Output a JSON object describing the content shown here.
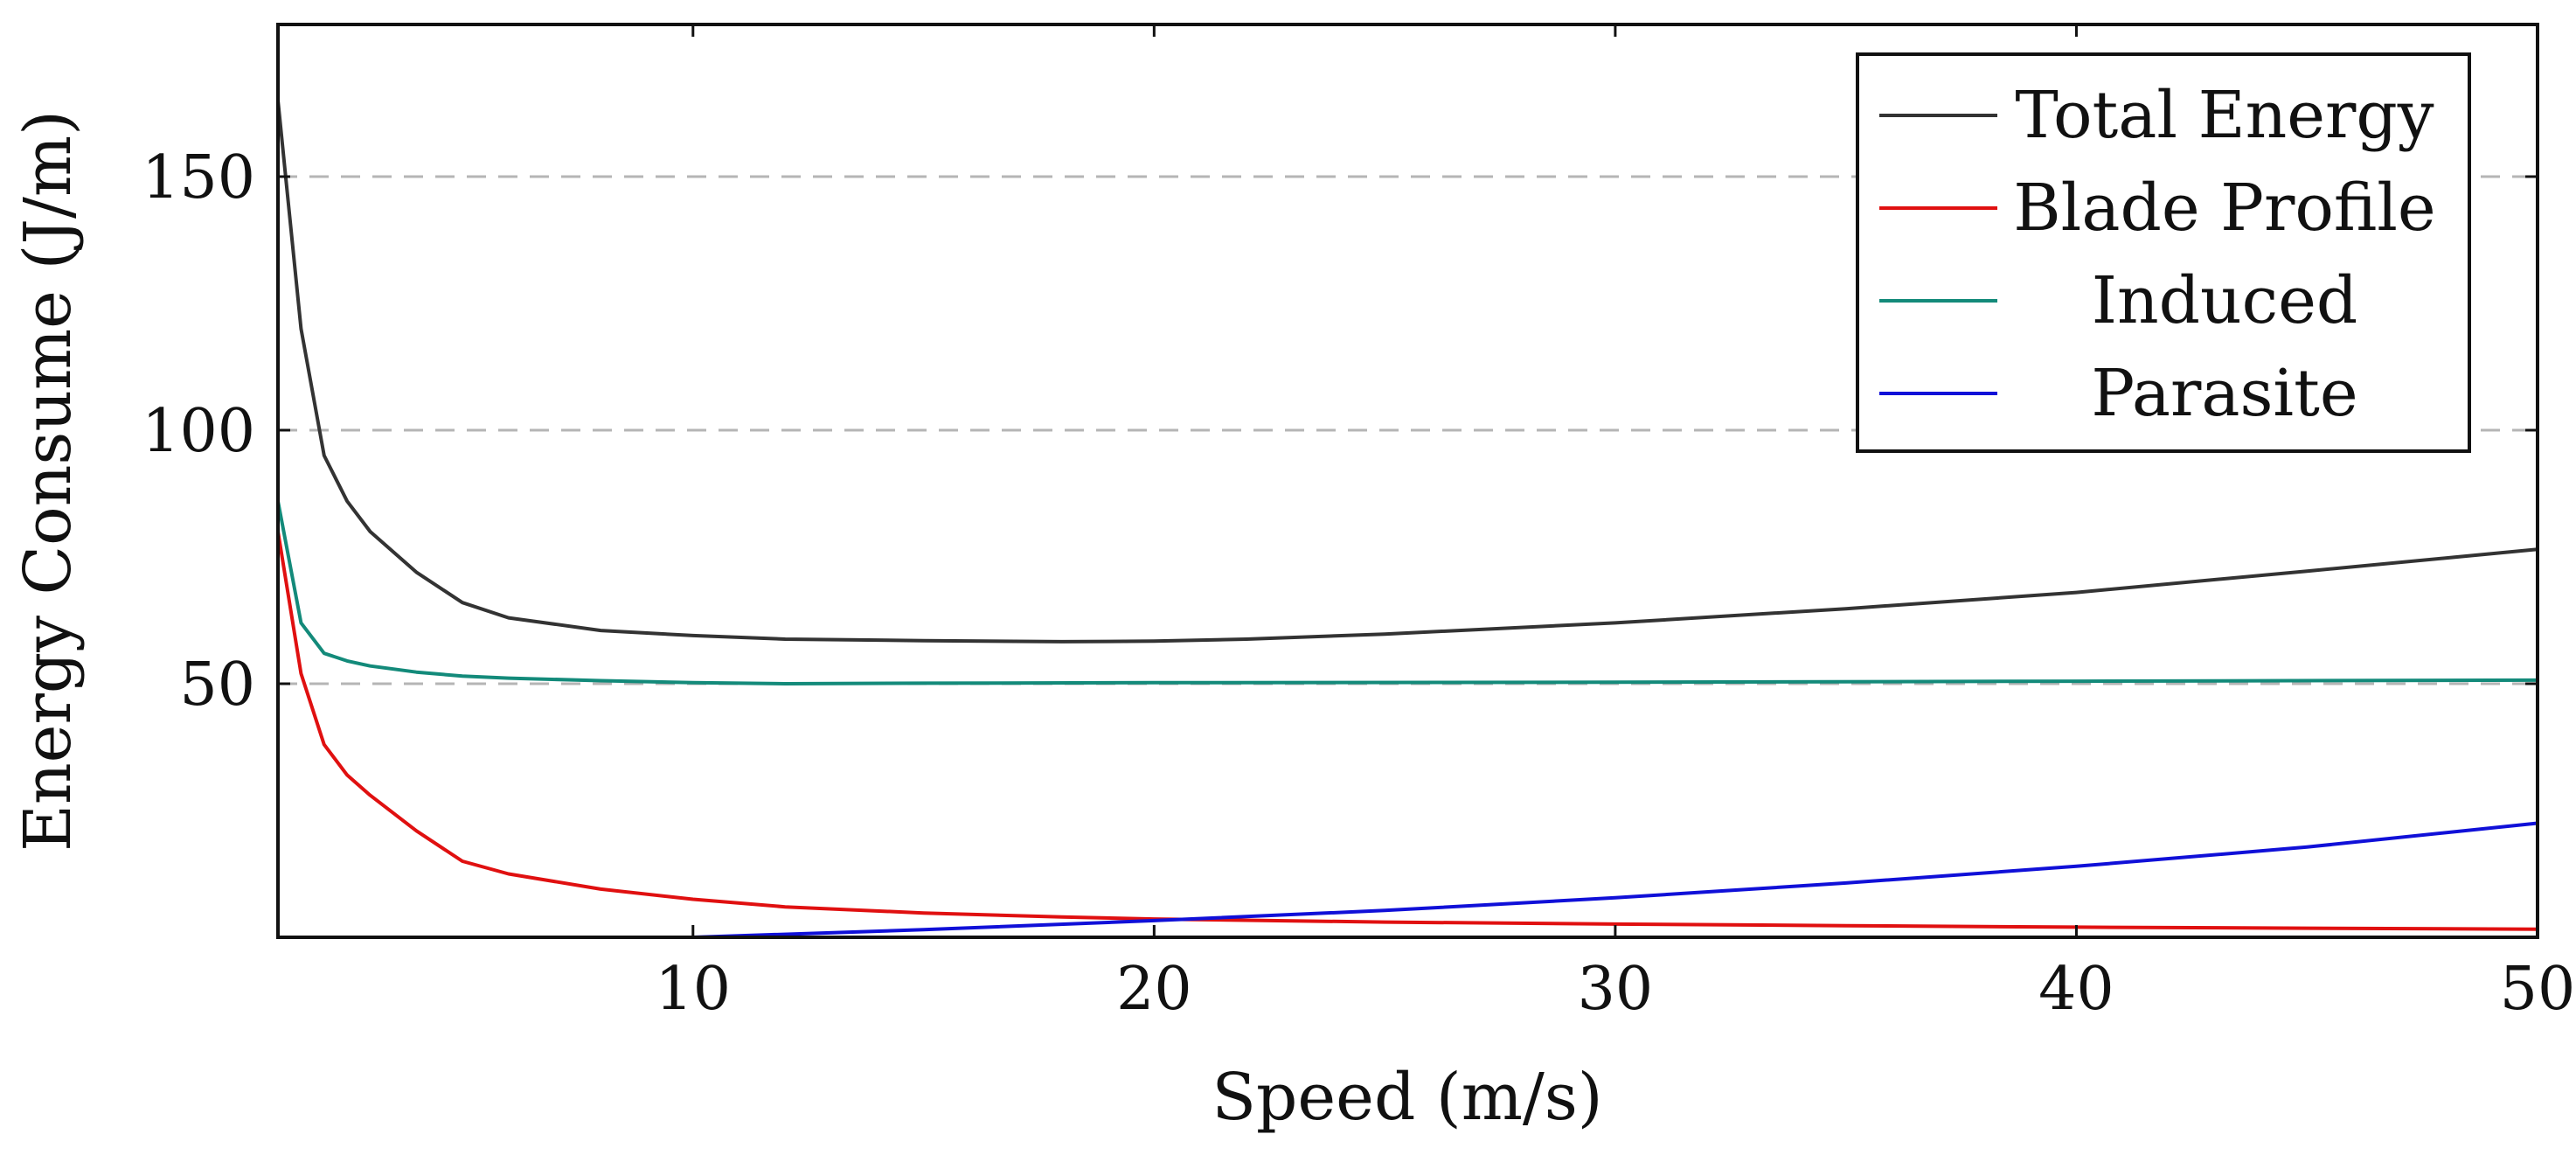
{
  "chart_data": {
    "type": "line",
    "title": "",
    "xlabel": "Speed (m/s)",
    "ylabel": "Energy Consume (J/m)",
    "xlim": [
      1,
      50
    ],
    "ylim": [
      0,
      180
    ],
    "xticks": [
      10,
      20,
      30,
      40,
      50
    ],
    "yticks": [
      50,
      100,
      150
    ],
    "grid": "horizontal-dashed",
    "legend_position": "top-right",
    "series": [
      {
        "name": "Total Energy",
        "color": "#333333",
        "x": [
          1,
          1.5,
          2,
          2.5,
          3,
          4,
          5,
          6,
          8,
          10,
          12,
          15,
          18,
          20,
          22,
          25,
          30,
          35,
          40,
          45,
          50
        ],
        "y": [
          165,
          120,
          95,
          86,
          80,
          72,
          66,
          63,
          60.5,
          59.5,
          58.8,
          58.5,
          58.3,
          58.4,
          58.8,
          59.8,
          62,
          64.8,
          68,
          72.2,
          76.5
        ]
      },
      {
        "name": "Blade Profile",
        "color": "#e01010",
        "x": [
          1,
          1.5,
          2,
          2.5,
          3,
          4,
          5,
          6,
          8,
          10,
          12,
          15,
          18,
          20,
          25,
          30,
          35,
          40,
          45,
          50
        ],
        "y": [
          80,
          52,
          38,
          32,
          28,
          21,
          15,
          12.5,
          9.5,
          7.5,
          6,
          4.8,
          4,
          3.6,
          3,
          2.6,
          2.3,
          2.0,
          1.8,
          1.6
        ]
      },
      {
        "name": "Induced",
        "color": "#138a7a",
        "x": [
          1,
          1.5,
          2,
          2.5,
          3,
          4,
          5,
          6,
          8,
          10,
          12,
          15,
          20,
          30,
          40,
          50
        ],
        "y": [
          86,
          62,
          56,
          54.5,
          53.5,
          52.3,
          51.5,
          51.1,
          50.6,
          50.2,
          50,
          50.1,
          50.2,
          50.3,
          50.5,
          50.7
        ]
      },
      {
        "name": "Parasite",
        "color": "#1010d8",
        "x": [
          10,
          15,
          20,
          25,
          30,
          35,
          40,
          45,
          50
        ],
        "y": [
          0,
          1.5,
          3.3,
          5.3,
          7.8,
          10.7,
          14.0,
          17.8,
          22.5
        ]
      }
    ]
  }
}
